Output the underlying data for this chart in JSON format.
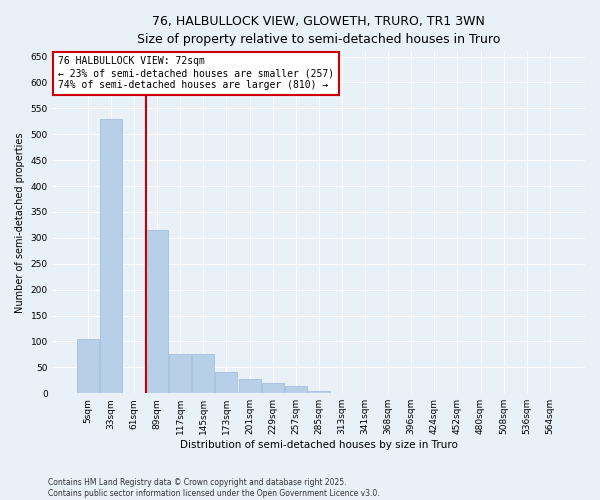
{
  "title1": "76, HALBULLOCK VIEW, GLOWETH, TRURO, TR1 3WN",
  "title2": "Size of property relative to semi-detached houses in Truro",
  "xlabel": "Distribution of semi-detached houses by size in Truro",
  "ylabel": "Number of semi-detached properties",
  "categories": [
    "5sqm",
    "33sqm",
    "61sqm",
    "89sqm",
    "117sqm",
    "145sqm",
    "173sqm",
    "201sqm",
    "229sqm",
    "257sqm",
    "285sqm",
    "313sqm",
    "341sqm",
    "368sqm",
    "396sqm",
    "424sqm",
    "452sqm",
    "480sqm",
    "508sqm",
    "536sqm",
    "564sqm"
  ],
  "values": [
    105,
    530,
    0,
    315,
    75,
    75,
    40,
    28,
    20,
    14,
    5,
    0,
    0,
    0,
    0,
    0,
    0,
    0,
    0,
    0,
    0
  ],
  "bar_color": "#b8cfe8",
  "bar_edge_color": "#9ab8d8",
  "vline_color": "#cc0000",
  "vline_pos": 2.5,
  "annotation_text": "76 HALBULLOCK VIEW: 72sqm\n← 23% of semi-detached houses are smaller (257)\n74% of semi-detached houses are larger (810) →",
  "annotation_box_color": "#ffffff",
  "annotation_box_edge": "#cc0000",
  "ylim": [
    0,
    660
  ],
  "yticks": [
    0,
    50,
    100,
    150,
    200,
    250,
    300,
    350,
    400,
    450,
    500,
    550,
    600,
    650
  ],
  "footnote1": "Contains HM Land Registry data © Crown copyright and database right 2025.",
  "footnote2": "Contains public sector information licensed under the Open Government Licence v3.0.",
  "bg_color": "#e8f0f8",
  "plot_bg_color": "#e8f0f8",
  "title1_fontsize": 9.0,
  "title2_fontsize": 8.5,
  "xlabel_fontsize": 7.5,
  "ylabel_fontsize": 7.0,
  "tick_fontsize": 6.5,
  "annot_fontsize": 7.0,
  "footnote_fontsize": 5.5
}
